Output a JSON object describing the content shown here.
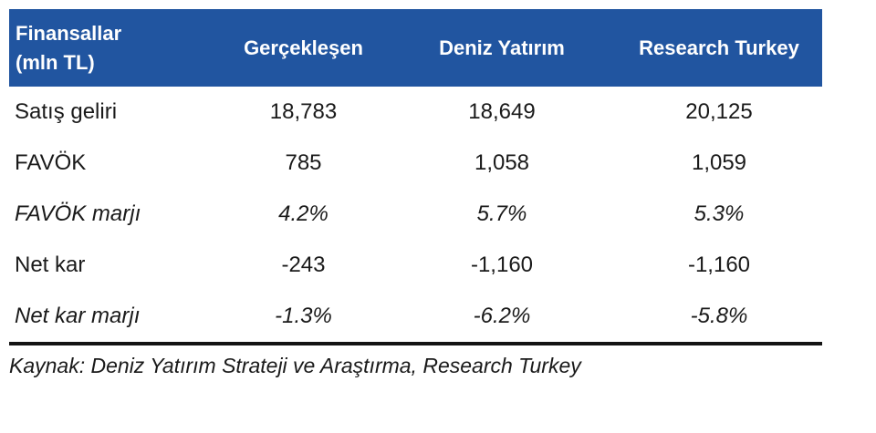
{
  "table": {
    "header": {
      "col1_line1": "Finansallar",
      "col1_line2": "(mln TL)",
      "columns": [
        "Gerçekleşen",
        "Deniz Yatırım",
        "Research Turkey"
      ]
    },
    "rows": [
      {
        "label": "Satış geliri",
        "values": [
          "18,783",
          "18,649",
          "20,125"
        ],
        "italic": false
      },
      {
        "label": "FAVÖK",
        "values": [
          "785",
          "1,058",
          "1,059"
        ],
        "italic": false
      },
      {
        "label": "FAVÖK marjı",
        "values": [
          "4.2%",
          "5.7%",
          "5.3%"
        ],
        "italic": true
      },
      {
        "label": "Net kar",
        "values": [
          "-243",
          "-1,160",
          "-1,160"
        ],
        "italic": false
      },
      {
        "label": "Net kar marjı",
        "values": [
          "-1.3%",
          "-6.2%",
          "-5.8%"
        ],
        "italic": true
      }
    ]
  },
  "footer": {
    "source_note": "Kaynak: Deniz Yatırım Strateji ve Araştırma, Research Turkey"
  },
  "colors": {
    "header_bg": "#2155A0",
    "header_text": "#FFFFFF",
    "body_text": "#1A1A1A",
    "divider": "#141414"
  }
}
